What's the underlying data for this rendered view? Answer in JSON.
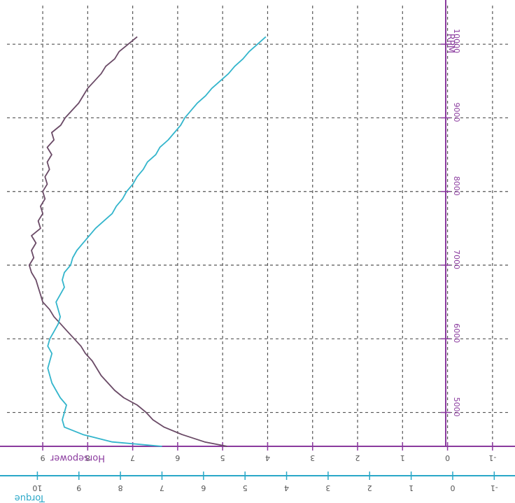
{
  "chart_data": {
    "type": "line",
    "orientation": "rotated-180",
    "x_axis": {
      "label": "RPM",
      "ticks": [
        "5000",
        "6000",
        "7000",
        "8000",
        "9000",
        "10000"
      ],
      "range": [
        4540,
        10600
      ]
    },
    "hp_axis": {
      "label": "Horsepower",
      "ticks": [
        "9",
        "8",
        "7",
        "6",
        "5",
        "4",
        "3",
        "2",
        "1",
        "0",
        "-1"
      ],
      "range": [
        -1.5,
        9.95
      ]
    },
    "torque_axis": {
      "label": "Torque",
      "ticks": [
        "10",
        "9",
        "8",
        "7",
        "6",
        "5",
        "4",
        "3",
        "2",
        "1",
        "0",
        "-1"
      ],
      "range": [
        -1.5,
        10.9
      ]
    },
    "grid": true,
    "series": [
      {
        "name": "Horsepower",
        "color": "#6a4a66",
        "axis": "hp",
        "x": [
          4540,
          4600,
          4700,
          4800,
          4900,
          5000,
          5100,
          5200,
          5300,
          5400,
          5500,
          5600,
          5700,
          5800,
          5900,
          6000,
          6100,
          6200,
          6300,
          6400,
          6500,
          6600,
          6700,
          6800,
          6900,
          7000,
          7100,
          7200,
          7300,
          7400,
          7500,
          7600,
          7700,
          7800,
          7900,
          8000,
          8100,
          8200,
          8300,
          8400,
          8500,
          8600,
          8700,
          8800,
          8900,
          9000,
          9100,
          9200,
          9300,
          9400,
          9500,
          9600,
          9700,
          9800,
          9900,
          10000,
          10100
        ],
        "y": [
          4.9,
          5.4,
          5.9,
          6.3,
          6.55,
          6.7,
          6.9,
          7.2,
          7.4,
          7.55,
          7.7,
          7.8,
          7.9,
          8.05,
          8.15,
          8.3,
          8.45,
          8.6,
          8.75,
          8.85,
          9.0,
          9.05,
          9.1,
          9.15,
          9.25,
          9.3,
          9.2,
          9.25,
          9.15,
          9.25,
          9.05,
          9.1,
          9.0,
          9.05,
          8.95,
          9.0,
          8.9,
          8.95,
          8.85,
          8.9,
          8.8,
          8.9,
          8.75,
          8.8,
          8.6,
          8.5,
          8.35,
          8.2,
          8.1,
          8.0,
          7.85,
          7.7,
          7.6,
          7.4,
          7.3,
          7.1,
          6.9
        ]
      },
      {
        "name": "Torque",
        "color": "#33b5cc",
        "axis": "torque",
        "x": [
          4540,
          4600,
          4700,
          4800,
          4900,
          5000,
          5100,
          5200,
          5300,
          5400,
          5500,
          5600,
          5700,
          5800,
          5900,
          6000,
          6100,
          6200,
          6300,
          6400,
          6500,
          6600,
          6700,
          6800,
          6900,
          7000,
          7100,
          7200,
          7300,
          7400,
          7500,
          7600,
          7700,
          7800,
          7900,
          8000,
          8100,
          8200,
          8300,
          8400,
          8500,
          8600,
          8700,
          8800,
          8900,
          9000,
          9100,
          9200,
          9300,
          9400,
          9500,
          9600,
          9700,
          9800,
          9900,
          10000,
          10100
        ],
        "y": [
          7.0,
          8.2,
          8.9,
          9.35,
          9.4,
          9.35,
          9.3,
          9.45,
          9.55,
          9.65,
          9.7,
          9.75,
          9.7,
          9.65,
          9.75,
          9.7,
          9.6,
          9.5,
          9.45,
          9.5,
          9.55,
          9.45,
          9.35,
          9.4,
          9.35,
          9.2,
          9.15,
          9.05,
          8.9,
          8.75,
          8.6,
          8.4,
          8.2,
          8.1,
          7.95,
          7.85,
          7.7,
          7.6,
          7.45,
          7.35,
          7.15,
          7.05,
          6.85,
          6.7,
          6.55,
          6.45,
          6.3,
          6.15,
          5.95,
          5.8,
          5.6,
          5.4,
          5.25,
          5.05,
          4.9,
          4.7,
          4.5
        ]
      }
    ]
  },
  "colors": {
    "axis_purple": "#8a3a9e",
    "axis_cyan": "#2aa8c8",
    "grid": "#555555"
  }
}
